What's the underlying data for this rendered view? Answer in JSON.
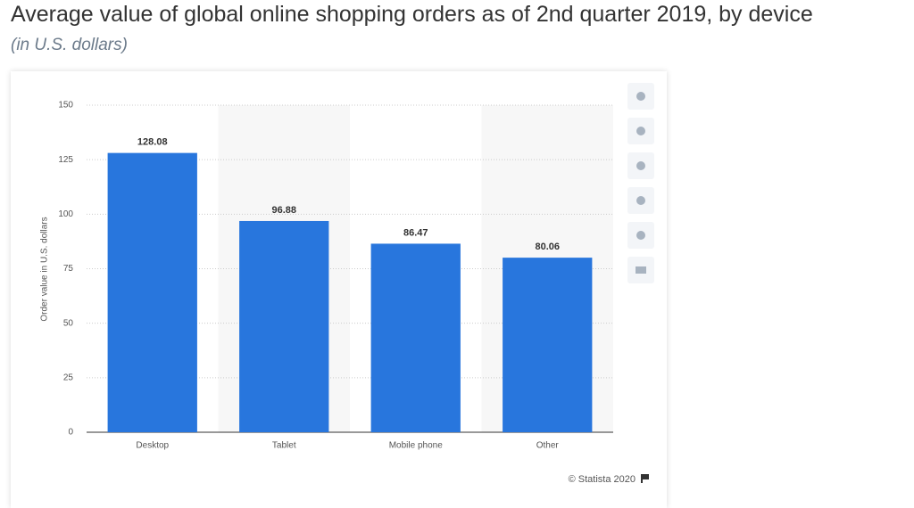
{
  "chart_data": {
    "type": "bar",
    "title": "Average value of global online shopping orders as of 2nd quarter 2019, by device",
    "subtitle": "(in U.S. dollars)",
    "y_label": "Order value in U.S. dollars",
    "categories": [
      "Desktop",
      "Tablet",
      "Mobile phone",
      "Other"
    ],
    "values": [
      128.08,
      96.88,
      86.47,
      80.06
    ],
    "color": "#2876dd",
    "ylim": [
      0,
      150
    ],
    "yticks": [
      0,
      25,
      50,
      75,
      100,
      125,
      150
    ],
    "grid": true,
    "source": "© Statista 2020"
  }
}
